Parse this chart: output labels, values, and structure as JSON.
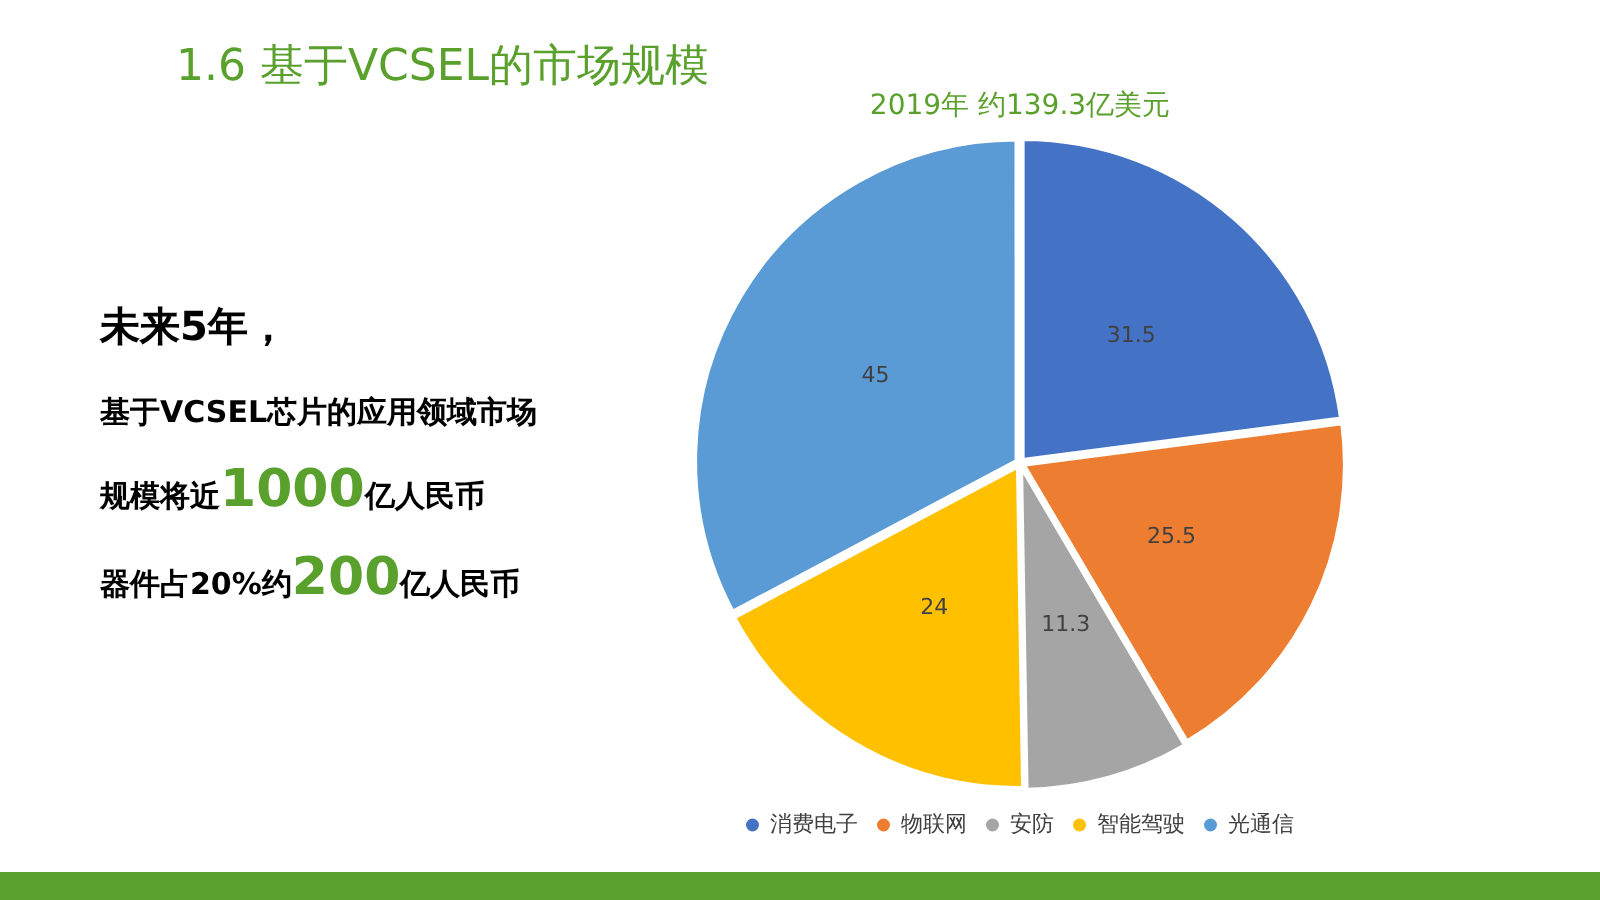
{
  "chart_data": {
    "type": "pie",
    "title": "1.6 基于VCSEL的市场规模",
    "subtitle": "2019年 约139.3亿美元",
    "categories": [
      "消费电子",
      "物联网",
      "安防",
      "智能驾驶",
      "光通信"
    ],
    "values": [
      31.5,
      25.5,
      11.3,
      24,
      45
    ],
    "colors": [
      "#4472c4",
      "#ed7d31",
      "#a5a5a5",
      "#ffc000",
      "#5b9bd5"
    ],
    "data_labels": true,
    "legend": "bottom",
    "annotations": [
      "未来5年，",
      "基于VCSEL芯片的应用领域市场",
      "规模将近1000亿人民币",
      "器件占20%约200亿人民币"
    ]
  }
}
